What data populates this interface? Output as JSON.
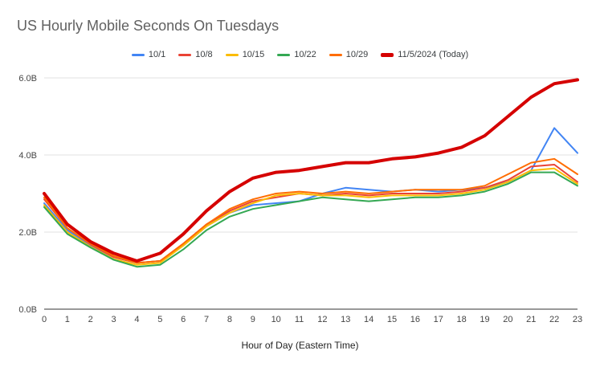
{
  "chart_data": {
    "type": "line",
    "title": "US Hourly Mobile Seconds On Tuesdays",
    "xlabel": "Hour of Day (Eastern Time)",
    "ylabel": "",
    "x": [
      0,
      1,
      2,
      3,
      4,
      5,
      6,
      7,
      8,
      9,
      10,
      11,
      12,
      13,
      14,
      15,
      16,
      17,
      18,
      19,
      20,
      21,
      22,
      23
    ],
    "ylim": [
      0,
      6
    ],
    "y_ticks": [
      {
        "value": 0,
        "label": "0.0B"
      },
      {
        "value": 2,
        "label": "2.0B"
      },
      {
        "value": 4,
        "label": "4.0B"
      },
      {
        "value": 6,
        "label": "6.0B"
      }
    ],
    "grid": true,
    "legend_position": "top",
    "colors": {
      "grid": "#e0e0e0",
      "axis": "#333333",
      "title": "#616161",
      "tick": "#444444"
    },
    "series": [
      {
        "name": "10/1",
        "color": "#4285F4",
        "width": 2,
        "values": [
          2.75,
          2.05,
          1.65,
          1.35,
          1.2,
          1.25,
          1.65,
          2.15,
          2.5,
          2.7,
          2.75,
          2.8,
          3.0,
          3.15,
          3.1,
          3.05,
          3.1,
          3.05,
          3.1,
          3.15,
          3.3,
          3.6,
          4.7,
          4.05
        ]
      },
      {
        "name": "10/8",
        "color": "#EA4335",
        "width": 2,
        "values": [
          2.85,
          2.1,
          1.68,
          1.35,
          1.2,
          1.25,
          1.7,
          2.2,
          2.55,
          2.8,
          2.9,
          3.0,
          2.95,
          3.0,
          2.95,
          3.0,
          3.0,
          3.0,
          3.05,
          3.15,
          3.35,
          3.7,
          3.75,
          3.3
        ]
      },
      {
        "name": "10/15",
        "color": "#FBBC04",
        "width": 2,
        "values": [
          2.7,
          2.0,
          1.62,
          1.3,
          1.15,
          1.2,
          1.65,
          2.15,
          2.5,
          2.75,
          2.95,
          3.0,
          2.95,
          2.95,
          2.9,
          2.95,
          2.95,
          2.95,
          3.0,
          3.1,
          3.3,
          3.6,
          3.65,
          3.25
        ]
      },
      {
        "name": "10/22",
        "color": "#34A853",
        "width": 2,
        "values": [
          2.65,
          1.95,
          1.6,
          1.28,
          1.1,
          1.15,
          1.55,
          2.05,
          2.4,
          2.6,
          2.7,
          2.8,
          2.9,
          2.85,
          2.8,
          2.85,
          2.9,
          2.9,
          2.95,
          3.05,
          3.25,
          3.55,
          3.55,
          3.2
        ]
      },
      {
        "name": "10/29",
        "color": "#FF6D01",
        "width": 2,
        "values": [
          2.9,
          2.1,
          1.7,
          1.38,
          1.2,
          1.25,
          1.7,
          2.2,
          2.6,
          2.85,
          3.0,
          3.05,
          3.0,
          3.05,
          3.0,
          3.05,
          3.1,
          3.1,
          3.1,
          3.2,
          3.5,
          3.8,
          3.9,
          3.5
        ]
      },
      {
        "name": "11/5/2024 (Today)",
        "color": "#D50000",
        "width": 4,
        "values": [
          3.0,
          2.2,
          1.75,
          1.45,
          1.25,
          1.45,
          1.95,
          2.55,
          3.05,
          3.4,
          3.55,
          3.6,
          3.7,
          3.8,
          3.8,
          3.9,
          3.95,
          4.05,
          4.2,
          4.5,
          5.0,
          5.5,
          5.85,
          5.95
        ]
      }
    ]
  }
}
